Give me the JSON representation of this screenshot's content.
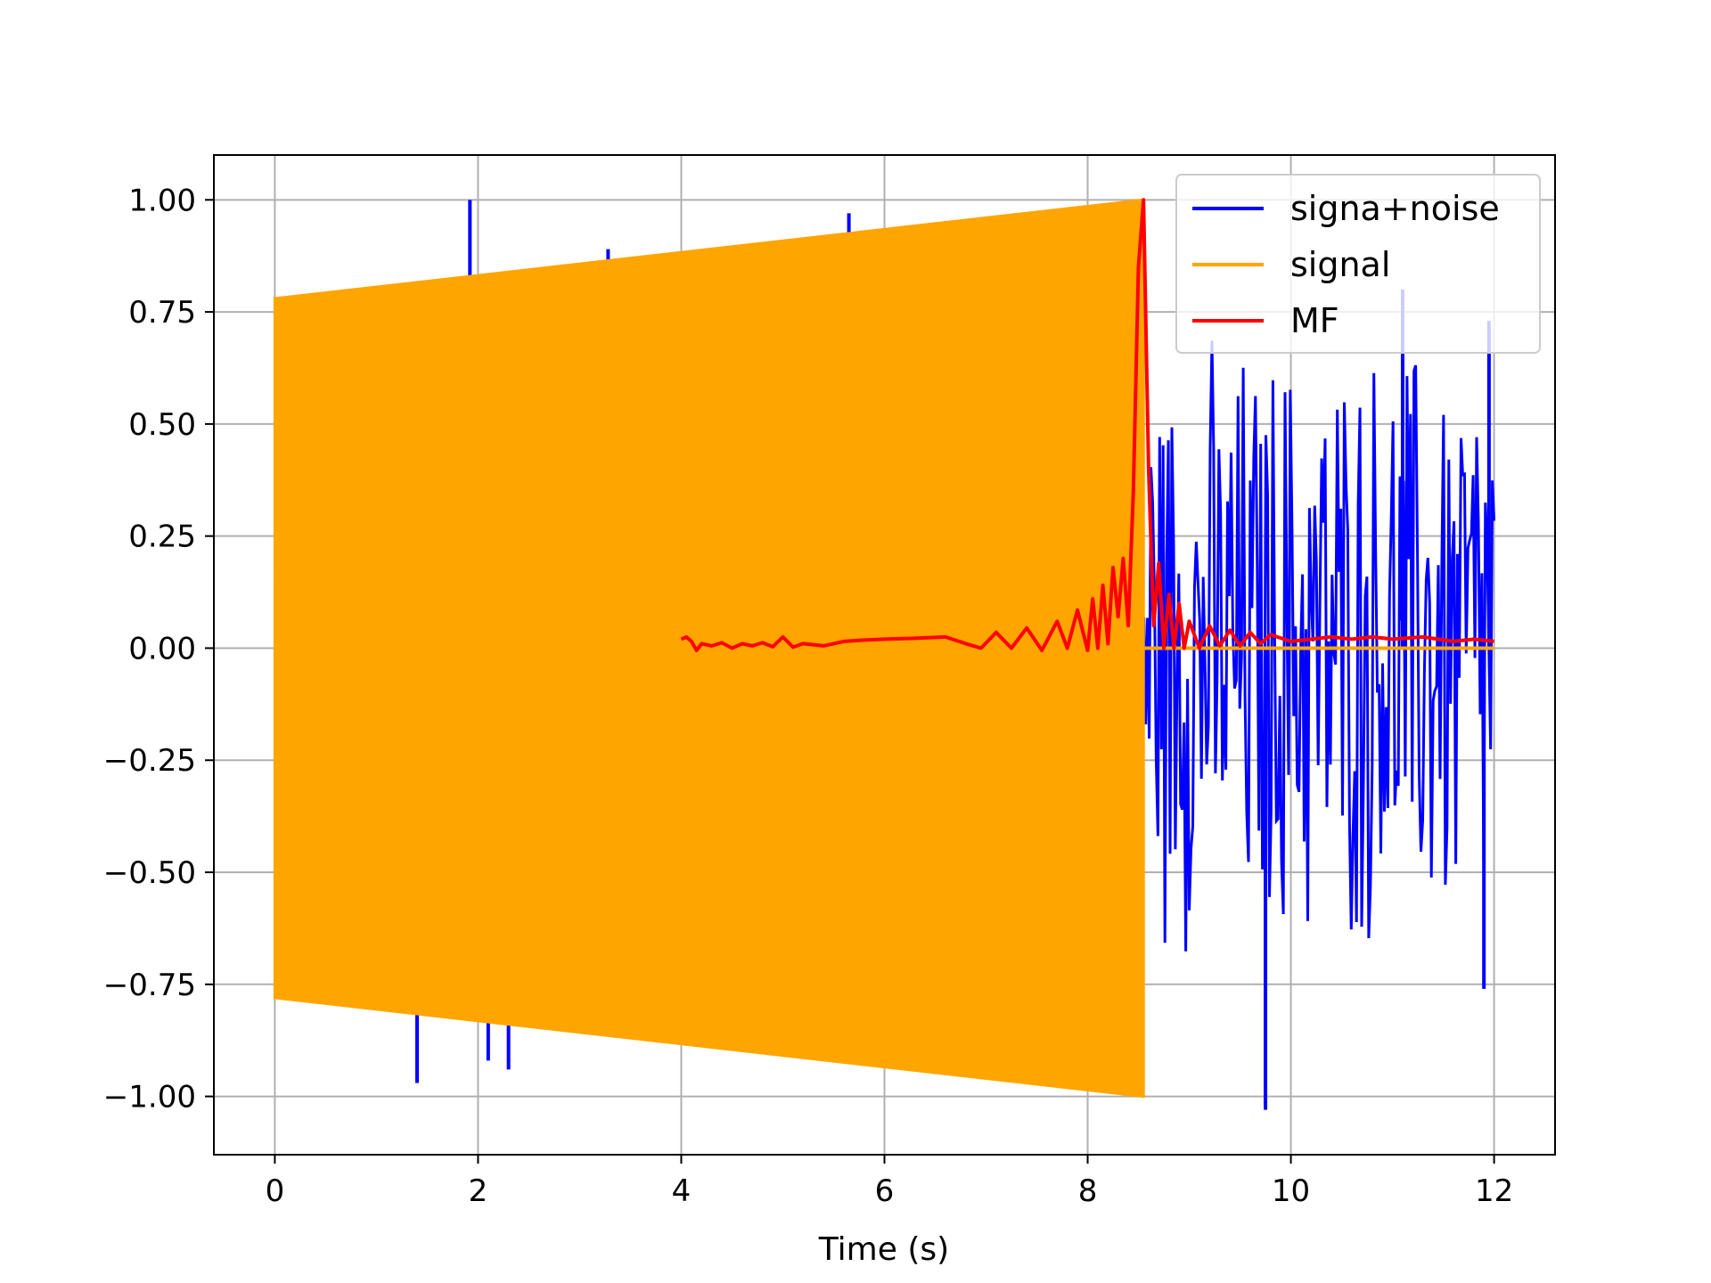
{
  "chart_data": {
    "type": "line",
    "title": "",
    "xlabel": "Time (s)",
    "ylabel": "",
    "xlim": [
      -0.6,
      12.6
    ],
    "ylim": [
      -1.13,
      1.1
    ],
    "x_ticks": [
      0,
      2,
      4,
      6,
      8,
      10,
      12
    ],
    "y_ticks": [
      1.0,
      0.75,
      0.5,
      0.25,
      0.0,
      -0.25,
      -0.5,
      -0.75,
      -1.0
    ],
    "x_tick_labels": [
      "0",
      "2",
      "4",
      "6",
      "8",
      "10",
      "12"
    ],
    "y_tick_labels": [
      "1.00",
      "0.75",
      "0.50",
      "0.25",
      "0.00",
      "−0.25",
      "−0.50",
      "−0.75",
      "−1.00"
    ],
    "grid": true,
    "legend_position": "top-right",
    "colors": {
      "noise": "#0000ff",
      "signal": "#ffa500",
      "mf": "#ff0000",
      "grid": "#b0b0b0"
    },
    "series": [
      {
        "name": "signa+noise",
        "color": "#0000ff",
        "kind": "noisy signal",
        "span": [
          0,
          12
        ],
        "noise_envelope": [
          -0.75,
          0.75
        ],
        "spikes": [
          {
            "x": 1.92,
            "y": 1.0
          },
          {
            "x": 1.4,
            "y": -0.97
          },
          {
            "x": 2.1,
            "y": -0.92
          },
          {
            "x": 2.3,
            "y": -0.94
          },
          {
            "x": 3.28,
            "y": 0.89
          },
          {
            "x": 5.65,
            "y": 0.97
          },
          {
            "x": 7.65,
            "y": 0.97
          },
          {
            "x": 9.75,
            "y": -1.03
          },
          {
            "x": 11.1,
            "y": 0.8
          },
          {
            "x": 11.9,
            "y": -0.76
          },
          {
            "x": 11.95,
            "y": 0.73
          }
        ]
      },
      {
        "name": "signal",
        "color": "#ffa500",
        "kind": "chirp envelope",
        "x": [
          0.0,
          8.55,
          8.6,
          12.0
        ],
        "upper": [
          0.78,
          1.0,
          0.0,
          0.0
        ],
        "lower": [
          -0.78,
          -1.0,
          0.0,
          0.0
        ]
      },
      {
        "name": "MF",
        "color": "#ff0000",
        "kind": "matched filter output",
        "x": [
          4.0,
          4.05,
          4.1,
          4.15,
          4.2,
          4.3,
          4.4,
          4.5,
          4.6,
          4.7,
          4.8,
          4.9,
          5.0,
          5.1,
          5.2,
          5.4,
          5.6,
          5.8,
          6.0,
          6.3,
          6.6,
          6.8,
          6.95,
          7.1,
          7.25,
          7.4,
          7.55,
          7.7,
          7.8,
          7.9,
          8.0,
          8.05,
          8.1,
          8.15,
          8.2,
          8.25,
          8.3,
          8.35,
          8.4,
          8.45,
          8.5,
          8.55,
          8.6,
          8.65,
          8.7,
          8.75,
          8.8,
          8.85,
          8.9,
          8.95,
          9.0,
          9.1,
          9.2,
          9.3,
          9.4,
          9.5,
          9.6,
          9.7,
          9.8,
          10.0,
          10.2,
          10.4,
          10.6,
          10.8,
          11.0,
          11.3,
          11.6,
          11.8,
          12.0
        ],
        "y": [
          0.02,
          0.025,
          0.015,
          -0.005,
          0.01,
          0.005,
          0.012,
          0.0,
          0.01,
          0.005,
          0.012,
          0.003,
          0.025,
          0.002,
          0.01,
          0.005,
          0.015,
          0.018,
          0.02,
          0.022,
          0.025,
          0.01,
          0.0,
          0.035,
          0.0,
          0.045,
          -0.005,
          0.06,
          0.0,
          0.085,
          -0.005,
          0.11,
          0.0,
          0.14,
          0.01,
          0.18,
          0.07,
          0.2,
          0.05,
          0.35,
          0.85,
          1.0,
          0.4,
          0.05,
          0.19,
          0.0,
          0.12,
          0.0,
          0.1,
          0.0,
          0.06,
          0.0,
          0.05,
          0.005,
          0.04,
          0.005,
          0.035,
          0.01,
          0.03,
          0.015,
          0.02,
          0.025,
          0.02,
          0.025,
          0.02,
          0.025,
          0.015,
          0.02,
          0.015
        ]
      }
    ]
  }
}
